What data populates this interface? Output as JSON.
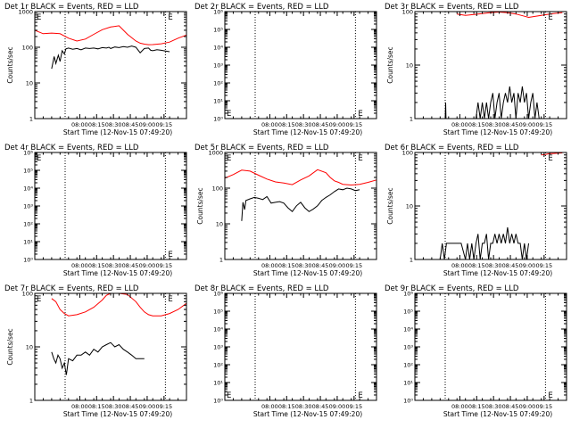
{
  "figure": {
    "series_names": [
      "Events",
      "LLD"
    ],
    "colors": {
      "events": "#000000",
      "lld": "#ff0000",
      "axis": "#000000",
      "background": "#ffffff"
    }
  },
  "chart_data": [
    {
      "type": "line",
      "panel": "Det 1r",
      "title": "Det 1r BLACK = Events, RED = LLD",
      "xlabel": "Start Time (12-Nov-15 07:49:20)",
      "ylabel": "Counts/sec",
      "yscale": "log",
      "ylim": [
        1,
        1000
      ],
      "ytick_labels": [
        "1000",
        "100",
        "10",
        "1"
      ],
      "xlim": [
        0,
        36
      ],
      "xtick_labels": [
        "08:00",
        "08:15",
        "08:30",
        "08:45",
        "09:00",
        "09:15"
      ],
      "x_ticks": [
        10.67,
        14.67,
        18.67,
        22.67,
        26.67,
        30.67
      ],
      "dotted_x": [
        7.2,
        31.0
      ],
      "markers": [
        {
          "text": "E",
          "at": "top-left"
        },
        {
          "text": "E",
          "at": "top-right"
        }
      ],
      "series": [
        {
          "name": "LLD",
          "color": "#ff0000",
          "x": [
            0,
            2,
            4,
            6,
            8,
            10,
            12,
            14,
            16,
            18,
            20,
            22,
            24,
            25,
            26,
            27,
            28,
            30,
            32,
            34,
            36
          ],
          "y": [
            300,
            240,
            250,
            240,
            180,
            150,
            170,
            230,
            310,
            370,
            400,
            230,
            150,
            130,
            122,
            118,
            119,
            125,
            140,
            180,
            220
          ]
        },
        {
          "name": "Events",
          "color": "#000000",
          "x": [
            4,
            4.6,
            5,
            5.6,
            6,
            6.5,
            7,
            7.4,
            8,
            9,
            10,
            11,
            12,
            13,
            14,
            15,
            16,
            17,
            17.6,
            18,
            19,
            20,
            21,
            22,
            23,
            24,
            25,
            26,
            27,
            27.5,
            28,
            29,
            30,
            31,
            32
          ],
          "y": [
            25,
            55,
            35,
            60,
            40,
            80,
            65,
            90,
            95,
            88,
            92,
            85,
            95,
            92,
            95,
            90,
            98,
            95,
            100,
            92,
            102,
            98,
            104,
            100,
            108,
            100,
            70,
            92,
            95,
            82,
            80,
            85,
            82,
            78,
            75
          ]
        }
      ]
    },
    {
      "type": "line",
      "panel": "Det 2r",
      "title": "Det 2r BLACK = Events, RED = LLD",
      "xlabel": "Start Time (12-Nov-15 07:49:20)",
      "ylabel": "",
      "yscale": "log",
      "ylim": [
        1,
        1000000
      ],
      "ytick_labels": [
        "10⁶",
        "10⁵",
        "10⁴",
        "10³",
        "10²",
        "10¹",
        "10⁰"
      ],
      "xlim": [
        0,
        36
      ],
      "xtick_labels": [
        "08:00",
        "08:15",
        "08:30",
        "08:45",
        "09:00",
        "09:15"
      ],
      "x_ticks": [
        10.67,
        14.67,
        18.67,
        22.67,
        26.67,
        30.67
      ],
      "dotted_x": [
        7.2,
        31.0,
        36
      ],
      "markers": [
        {
          "text": "E",
          "at": "bottom-left"
        },
        {
          "text": "E",
          "at": "bottom-right"
        }
      ],
      "series": []
    },
    {
      "type": "line",
      "panel": "Det 3r",
      "title": "Det 3r BLACK = Events, RED = LLD",
      "xlabel": "Start Time (12-Nov-15 07:49:20)",
      "ylabel": "Counts/sec",
      "yscale": "log",
      "ylim": [
        1,
        100
      ],
      "ytick_labels": [
        "100",
        "10",
        "1"
      ],
      "xlim": [
        0,
        36
      ],
      "xtick_labels": [
        "08:00",
        "08:15",
        "08:30",
        "08:45",
        "09:00",
        "09:15"
      ],
      "x_ticks": [
        10.67,
        14.67,
        18.67,
        22.67,
        26.67,
        30.67
      ],
      "dotted_x": [
        7.2,
        31.0,
        36
      ],
      "markers": [
        {
          "text": "E",
          "at": "top-right"
        }
      ],
      "series": [
        {
          "name": "LLD",
          "color": "#ff0000",
          "x": [
            10,
            12,
            14,
            16,
            18,
            20,
            22,
            24,
            26,
            27,
            28,
            30,
            32,
            34,
            35
          ],
          "y": [
            90,
            85,
            88,
            92,
            96,
            98,
            95,
            90,
            82,
            78,
            80,
            85,
            90,
            94,
            96
          ]
        },
        {
          "name": "Events",
          "color": "#000000",
          "x": [
            7.2,
            7.3,
            7.4,
            14.5,
            15,
            15.5,
            16,
            16.5,
            17,
            17.5,
            18,
            18.5,
            19,
            19.5,
            20,
            20.5,
            21,
            21.5,
            22,
            22.5,
            23,
            23.5,
            24,
            24.5,
            25,
            25.5,
            26,
            26.5,
            27,
            27.5,
            28,
            28.5,
            29,
            29.5
          ],
          "y": [
            1,
            2,
            1,
            1,
            2,
            1,
            2,
            1,
            2,
            1,
            2,
            3,
            1,
            2,
            3,
            1,
            2,
            3,
            2,
            4,
            2,
            3,
            1,
            3,
            2,
            4,
            2,
            3,
            1,
            2,
            3,
            1,
            2,
            1
          ]
        }
      ]
    },
    {
      "type": "line",
      "panel": "Det 4r",
      "title": "Det 4r BLACK = Events, RED = LLD",
      "xlabel": "Start Time (12-Nov-15 07:49:20)",
      "ylabel": "",
      "yscale": "log",
      "ylim": [
        1,
        1000000
      ],
      "ytick_labels": [
        "10⁶",
        "10⁵",
        "10⁴",
        "10³",
        "10²",
        "10¹",
        "10⁰"
      ],
      "xlim": [
        0,
        36
      ],
      "xtick_labels": [
        "08:00",
        "08:15",
        "08:30",
        "08:45",
        "09:00",
        "09:15"
      ],
      "x_ticks": [
        10.67,
        14.67,
        18.67,
        22.67,
        26.67,
        30.67
      ],
      "dotted_x": [
        7.2,
        31.0
      ],
      "markers": [
        {
          "text": "E",
          "at": "top-left"
        },
        {
          "text": "E",
          "at": "bottom-right"
        }
      ],
      "series": []
    },
    {
      "type": "line",
      "panel": "Det 5r",
      "title": "Det 5r BLACK = Events, RED = LLD",
      "xlabel": "Start Time (12-Nov-15 07:49:20)",
      "ylabel": "Counts/sec",
      "yscale": "log",
      "ylim": [
        1,
        1000
      ],
      "ytick_labels": [
        "1000",
        "100",
        "10",
        "1"
      ],
      "xlim": [
        0,
        36
      ],
      "xtick_labels": [
        "08:00",
        "08:15",
        "08:30",
        "08:45",
        "09:00",
        "09:15"
      ],
      "x_ticks": [
        10.67,
        14.67,
        18.67,
        22.67,
        26.67,
        30.67
      ],
      "dotted_x": [
        7.2,
        31.0
      ],
      "markers": [
        {
          "text": "E",
          "at": "top-left"
        },
        {
          "text": "E",
          "at": "top-right"
        }
      ],
      "series": [
        {
          "name": "LLD",
          "color": "#ff0000",
          "x": [
            0,
            2,
            4,
            6,
            8,
            10,
            12,
            14,
            16,
            18,
            20,
            22,
            24,
            25,
            26,
            27,
            28,
            30,
            32,
            34,
            36
          ],
          "y": [
            190,
            240,
            320,
            300,
            230,
            180,
            150,
            140,
            125,
            170,
            220,
            330,
            270,
            200,
            160,
            145,
            128,
            122,
            128,
            145,
            170
          ]
        },
        {
          "name": "Events",
          "color": "#000000",
          "x": [
            4,
            4.3,
            4.7,
            5,
            6,
            7,
            8,
            9,
            10,
            11,
            12,
            13,
            14,
            15,
            16,
            17,
            18,
            19,
            20,
            21,
            22,
            23,
            24,
            25,
            26,
            27,
            28,
            29,
            30,
            31,
            32
          ],
          "y": [
            12,
            40,
            25,
            45,
            50,
            55,
            52,
            48,
            58,
            38,
            40,
            42,
            38,
            28,
            22,
            32,
            40,
            28,
            22,
            26,
            32,
            45,
            55,
            65,
            80,
            95,
            90,
            100,
            95,
            85,
            90
          ]
        }
      ]
    },
    {
      "type": "line",
      "panel": "Det 6r",
      "title": "Det 6r BLACK = Events, RED = LLD",
      "xlabel": "Start Time (12-Nov-15 07:49:20)",
      "ylabel": "Counts/sec",
      "yscale": "log",
      "ylim": [
        1,
        100
      ],
      "ytick_labels": [
        "100",
        "10",
        "1"
      ],
      "xlim": [
        0,
        36
      ],
      "xtick_labels": [
        "08:00",
        "08:15",
        "08:30",
        "08:45",
        "09:00",
        "09:15"
      ],
      "x_ticks": [
        10.67,
        14.67,
        18.67,
        22.67,
        26.67,
        30.67
      ],
      "dotted_x": [
        7.2,
        31.0,
        36
      ],
      "markers": [
        {
          "text": "E",
          "at": "top-right"
        }
      ],
      "series": [
        {
          "name": "LLD",
          "color": "#ff0000",
          "x": [
            30,
            31,
            32,
            33,
            34,
            35
          ],
          "y": [
            90,
            92,
            95,
            96,
            97,
            98
          ]
        },
        {
          "name": "Events",
          "color": "#000000",
          "x": [
            6,
            6.5,
            7,
            7.5,
            8,
            9,
            10,
            11,
            12,
            12.5,
            13,
            13.5,
            14,
            14.5,
            15,
            15.5,
            16,
            16.5,
            17,
            17.5,
            18,
            18.5,
            19,
            19.5,
            20,
            20.5,
            21,
            21.5,
            22,
            22.5,
            23,
            23.5,
            24,
            24.5,
            25,
            25.5,
            26,
            26.5,
            27
          ],
          "y": [
            1,
            2,
            1,
            2,
            2,
            2,
            2,
            2,
            1,
            2,
            1,
            2,
            1,
            2,
            3,
            1,
            2,
            2,
            3,
            1,
            2,
            2,
            3,
            2,
            3,
            2,
            3,
            2,
            4,
            2,
            3,
            2,
            3,
            2,
            2,
            1,
            2,
            1,
            2
          ]
        }
      ]
    },
    {
      "type": "line",
      "panel": "Det 7r",
      "title": "Det 7r BLACK = Events, RED = LLD",
      "xlabel": "Start Time (12-Nov-15 07:49:20)",
      "ylabel": "Counts/sec",
      "yscale": "log",
      "ylim": [
        1,
        100
      ],
      "ytick_labels": [
        "100",
        "10",
        "1"
      ],
      "xlim": [
        0,
        36
      ],
      "xtick_labels": [
        "08:00",
        "08:15",
        "08:30",
        "08:45",
        "09:00",
        "09:15"
      ],
      "x_ticks": [
        10.67,
        14.67,
        18.67,
        22.67,
        26.67,
        30.67
      ],
      "dotted_x": [
        7.2,
        31.0
      ],
      "markers": [
        {
          "text": "E",
          "at": "top-left"
        },
        {
          "text": "E",
          "at": "top-right"
        }
      ],
      "series": [
        {
          "name": "LLD",
          "color": "#ff0000",
          "x": [
            4,
            5,
            6,
            7,
            8,
            10,
            12,
            14,
            16,
            17,
            18,
            20,
            22,
            24,
            25,
            26,
            27,
            28,
            30,
            32,
            34,
            36
          ],
          "y": [
            80,
            70,
            50,
            42,
            38,
            40,
            45,
            55,
            75,
            92,
            100,
            100,
            95,
            70,
            55,
            45,
            40,
            38,
            38,
            42,
            50,
            65
          ]
        },
        {
          "name": "Events",
          "color": "#000000",
          "x": [
            4,
            4.5,
            5,
            5.5,
            6,
            6.5,
            7,
            7.5,
            8,
            9,
            10,
            11,
            12,
            13,
            14,
            15,
            16,
            17,
            18,
            19,
            20,
            21,
            22,
            23,
            24,
            25,
            26
          ],
          "y": [
            8,
            6,
            5,
            7,
            6,
            4,
            5,
            3,
            6,
            5.5,
            7,
            7,
            8,
            7,
            9,
            8,
            10,
            11,
            12,
            10,
            11,
            9,
            8,
            7,
            6,
            6,
            6
          ]
        }
      ]
    },
    {
      "type": "line",
      "panel": "Det 8r",
      "title": "Det 8r BLACK = Events, RED = LLD",
      "xlabel": "Start Time (12-Nov-15 07:49:20)",
      "ylabel": "",
      "yscale": "log",
      "ylim": [
        1,
        1000000
      ],
      "ytick_labels": [
        "10⁶",
        "10⁵",
        "10⁴",
        "10³",
        "10²",
        "10¹",
        "10⁰"
      ],
      "xlim": [
        0,
        36
      ],
      "xtick_labels": [
        "08:00",
        "08:15",
        "08:30",
        "08:45",
        "09:00",
        "09:15"
      ],
      "x_ticks": [
        10.67,
        14.67,
        18.67,
        22.67,
        26.67,
        30.67
      ],
      "dotted_x": [
        7.2,
        31.0,
        36
      ],
      "markers": [
        {
          "text": "E",
          "at": "bottom-left"
        },
        {
          "text": "E",
          "at": "bottom-right"
        }
      ],
      "series": []
    },
    {
      "type": "line",
      "panel": "Det 9r",
      "title": "Det 9r BLACK = Events, RED = LLD",
      "xlabel": "Start Time (12-Nov-15 07:49:20)",
      "ylabel": "",
      "yscale": "log",
      "ylim": [
        1,
        1000000
      ],
      "ytick_labels": [
        "10⁶",
        "10⁵",
        "10⁴",
        "10³",
        "10²",
        "10¹",
        "10⁰"
      ],
      "xlim": [
        0,
        36
      ],
      "xtick_labels": [
        "08:00",
        "08:15",
        "08:30",
        "08:45",
        "09:00",
        "09:15"
      ],
      "x_ticks": [
        10.67,
        14.67,
        18.67,
        22.67,
        26.67,
        30.67
      ],
      "dotted_x": [
        7.2,
        31.0,
        36
      ],
      "markers": [
        {
          "text": "E",
          "at": "bottom-right"
        }
      ],
      "series": []
    }
  ]
}
